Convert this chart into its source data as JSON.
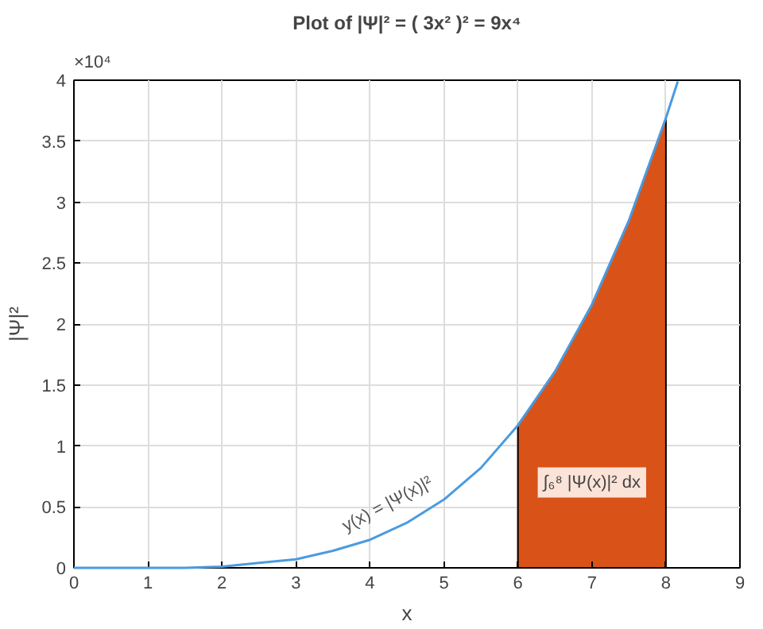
{
  "chart_data": {
    "type": "line",
    "title": "Plot of |Ψ|² = ( 3x² )² = 9x⁴",
    "xlabel": "x",
    "ylabel": "|Ψ|²",
    "series": [
      {
        "color": "#4a9be0",
        "x": [
          0,
          0.5,
          1,
          1.5,
          2,
          2.5,
          3,
          3.5,
          4,
          4.5,
          5,
          5.5,
          6,
          6.5,
          7,
          7.5,
          8,
          8.16
        ],
        "values": [
          0,
          0,
          0,
          0,
          0.01,
          0.04,
          0.07,
          0.14,
          0.23,
          0.37,
          0.56,
          0.82,
          1.17,
          1.61,
          2.16,
          2.85,
          3.69,
          3.99
        ]
      },
      {
        "type": "area",
        "color": "#d95319",
        "x": [
          6,
          6.5,
          7,
          7.5,
          8
        ],
        "values": [
          1.17,
          1.61,
          2.16,
          2.85,
          3.69
        ]
      }
    ],
    "xlim": [
      0,
      9
    ],
    "xticks": [
      0,
      1,
      2,
      3,
      4,
      5,
      6,
      7,
      8,
      9
    ],
    "ylim": [
      0,
      4
    ],
    "yticks": [
      0,
      0.5,
      1,
      1.5,
      2,
      2.5,
      3,
      3.5,
      4
    ],
    "annotations": [
      "×10⁴",
      "y(x) = |Ψ(x)|²",
      "∫₆⁸ |Ψ(x)|² dx"
    ],
    "grid": true
  }
}
